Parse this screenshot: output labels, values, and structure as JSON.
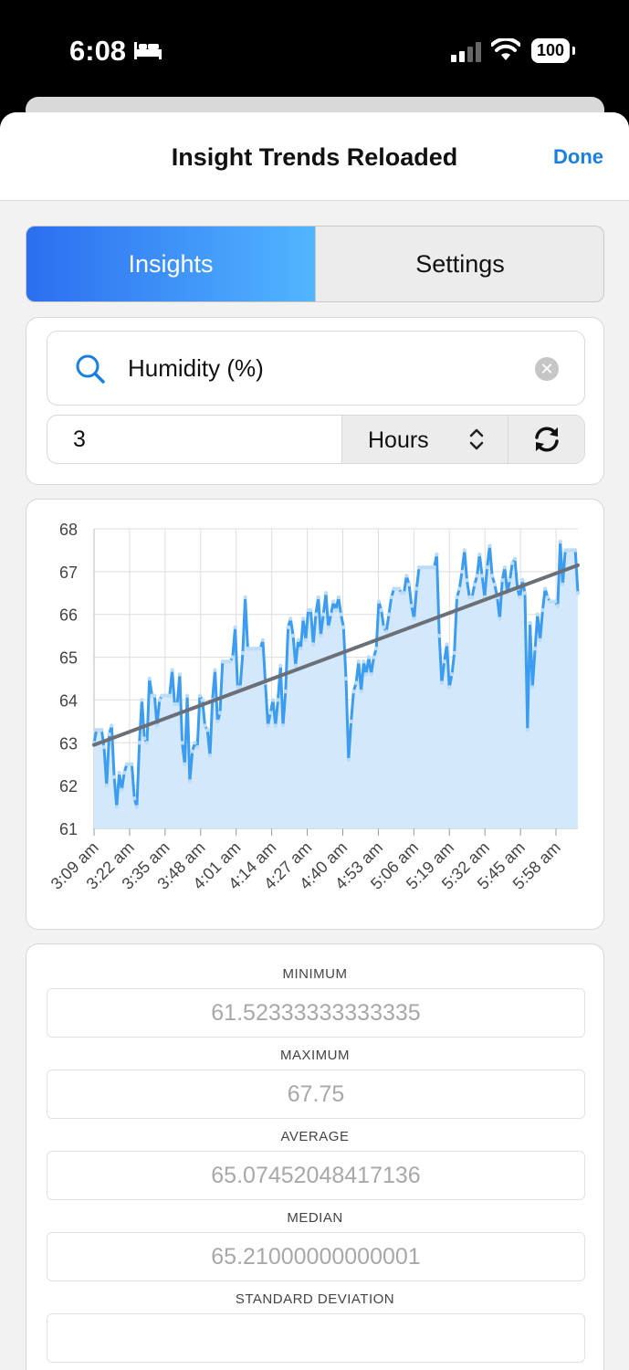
{
  "status_bar": {
    "time": "6:08",
    "battery": "100",
    "icons": [
      "bed-icon",
      "cellular-signal-icon",
      "wifi-icon",
      "battery-icon"
    ]
  },
  "nav": {
    "title": "Insight Trends Reloaded",
    "done_label": "Done"
  },
  "segments": {
    "insights": "Insights",
    "settings": "Settings",
    "selected": "insights"
  },
  "query": {
    "metric": "Humidity (%)",
    "duration_value": "3",
    "duration_unit": "Hours"
  },
  "colors": {
    "accent": "#1a7fe0",
    "line": "#3b9cf0",
    "fill": "#d3e8fb",
    "trend": "#6b7078"
  },
  "chart_data": {
    "type": "line",
    "ylim": [
      61,
      68
    ],
    "yticks": [
      61,
      62,
      63,
      64,
      65,
      66,
      67,
      68
    ],
    "xticks": [
      "3:09 am",
      "3:22 am",
      "3:35 am",
      "3:48 am",
      "4:01 am",
      "4:14 am",
      "4:27 am",
      "4:40 am",
      "4:53 am",
      "5:06 am",
      "5:19 am",
      "5:32 am",
      "5:45 am",
      "5:58 am"
    ],
    "x_start_min": 189,
    "x_end_min": 366,
    "grid": true,
    "legend": "none",
    "series": [
      {
        "values": [
          63.0,
          63.3,
          63.3,
          63.3,
          62.9,
          62.0,
          63.2,
          63.4,
          62.2,
          61.5,
          62.3,
          61.9,
          62.3,
          62.5,
          62.5,
          62.5,
          61.7,
          61.5,
          63.0,
          64.0,
          63.1,
          63.0,
          64.5,
          64.1,
          64.1,
          63.4,
          64.0,
          64.1,
          64.1,
          64.1,
          64.1,
          64.7,
          63.9,
          63.9,
          64.6,
          63.0,
          62.5,
          64.1,
          62.1,
          62.8,
          63.0,
          62.9,
          64.1,
          64.0,
          63.4,
          63.3,
          62.7,
          64.0,
          64.7,
          63.5,
          63.7,
          64.9,
          64.9,
          64.9,
          64.9,
          65.0,
          65.7,
          64.3,
          64.3,
          65.1,
          66.4,
          65.2,
          65.2,
          65.2,
          65.2,
          65.2,
          65.2,
          65.4,
          64.4,
          63.4,
          63.7,
          64.0,
          63.4,
          64.0,
          64.8,
          63.4,
          64.2,
          65.7,
          65.9,
          65.5,
          64.8,
          65.4,
          65.2,
          65.9,
          65.4,
          66.1,
          66.1,
          65.3,
          66.0,
          66.4,
          65.5,
          66.0,
          66.5,
          65.7,
          66.0,
          66.3,
          66.1,
          66.4,
          66.0,
          65.7,
          64.5,
          62.6,
          63.5,
          64.2,
          64.4,
          64.9,
          64.2,
          64.9,
          64.6,
          65.0,
          64.6,
          65.0,
          65.2,
          66.3,
          66.1,
          65.7,
          65.6,
          66.0,
          66.4,
          66.6,
          66.6,
          66.6,
          66.5,
          66.5,
          66.9,
          66.7,
          66.2,
          65.9,
          66.6,
          67.1,
          67.1,
          67.1,
          67.1,
          67.1,
          67.1,
          67.1,
          67.4,
          65.5,
          64.4,
          64.9,
          65.3,
          64.3,
          64.6,
          65.1,
          66.4,
          66.6,
          67.0,
          67.5,
          66.8,
          66.4,
          66.4,
          66.7,
          66.9,
          67.4,
          66.9,
          66.4,
          67.1,
          67.6,
          66.9,
          66.7,
          66.4,
          65.9,
          66.8,
          67.1,
          66.5,
          66.8,
          67.2,
          67.3,
          66.6,
          66.4,
          66.8,
          66.5,
          63.3,
          65.8,
          64.3,
          65.2,
          66.0,
          65.4,
          66.1,
          66.6,
          66.4,
          66.3,
          66.3,
          66.3,
          66.2,
          67.7,
          66.7,
          67.5,
          67.5,
          67.5,
          67.5,
          67.5,
          66.5
        ]
      }
    ],
    "trendline": {
      "start": 62.95,
      "end": 67.15
    }
  },
  "stats": {
    "minimum_label": "MINIMUM",
    "minimum": "61.52333333333335",
    "maximum_label": "MAXIMUM",
    "maximum": "67.75",
    "average_label": "AVERAGE",
    "average": "65.07452048417136",
    "median_label": "MEDIAN",
    "median": "65.21000000000001",
    "stddev_label": "STANDARD DEVIATION"
  }
}
